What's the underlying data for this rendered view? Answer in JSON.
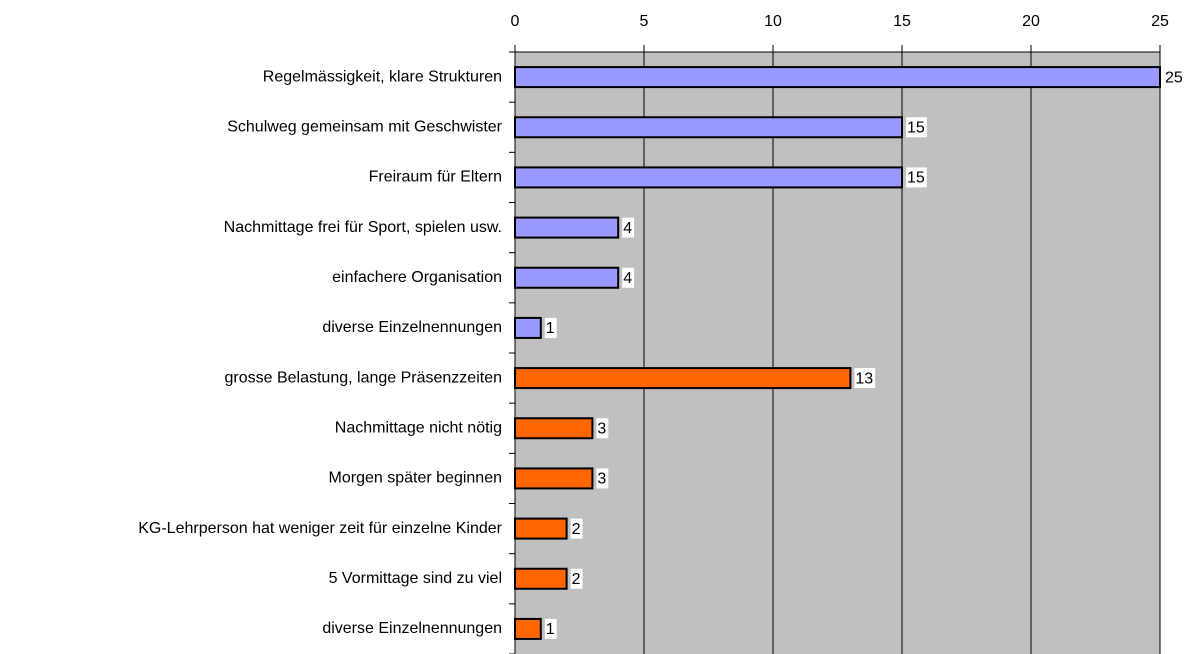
{
  "chart_data": {
    "type": "barh",
    "categories": [
      "Regelmässigkeit, klare Strukturen",
      "Schulweg gemeinsam mit Geschwister",
      "Freiraum für Eltern",
      "Nachmittage frei für Sport, spielen usw.",
      "einfachere Organisation",
      "diverse Einzelnennungen",
      "grosse Belastung, lange Präsenzzeiten",
      "Nachmittage nicht nötig",
      "Morgen später beginnen",
      "KG-Lehrperson hat weniger zeit für einzelne Kinder",
      "5 Vormittage sind zu viel",
      "diverse Einzelnennungen"
    ],
    "values": [
      25,
      15,
      15,
      4,
      4,
      1,
      13,
      3,
      3,
      2,
      2,
      1
    ],
    "colors": [
      "#9999ff",
      "#9999ff",
      "#9999ff",
      "#9999ff",
      "#9999ff",
      "#9999ff",
      "#ff6600",
      "#ff6600",
      "#ff6600",
      "#ff6600",
      "#ff6600",
      "#ff6600"
    ],
    "xlim": [
      0,
      25
    ],
    "xticks": [
      0,
      5,
      10,
      15,
      20,
      25
    ],
    "grid": true
  }
}
